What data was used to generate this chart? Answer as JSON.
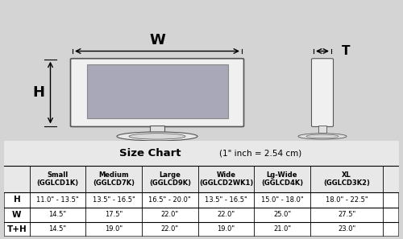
{
  "title": "Size Chart",
  "subtitle": "(1\" inch = 2.54 cm)",
  "bg_color": "#d4d4d4",
  "table_bg": "#ffffff",
  "col_headers": [
    "Small\n(GGLCD1K)",
    "Medium\n(GGLCD7K)",
    "Large\n(GGLCD9K)",
    "Wide\n(GGLCD2WK1)",
    "Lg-Wide\n(GGLCD4K)",
    "XL\n(GGLCD3K2)"
  ],
  "row_headers": [
    "H",
    "W",
    "T+H"
  ],
  "table_data": [
    [
      "11.0\" - 13.5\"",
      "13.5\" - 16.5\"",
      "16.5\" - 20.0\"",
      "13.5\" - 16.5\"",
      "15.0\" - 18.0\"",
      "18.0\" - 22.5\""
    ],
    [
      "14.5\"",
      "17.5\"",
      "22.0\"",
      "22.0\"",
      "25.0\"",
      "27.5\""
    ],
    [
      "14.5\"",
      "19.0\"",
      "22.0\"",
      "19.0\"",
      "21.0\"",
      "23.0\""
    ]
  ],
  "screen_bg": "#a8a8b8",
  "border_color": "#555555"
}
